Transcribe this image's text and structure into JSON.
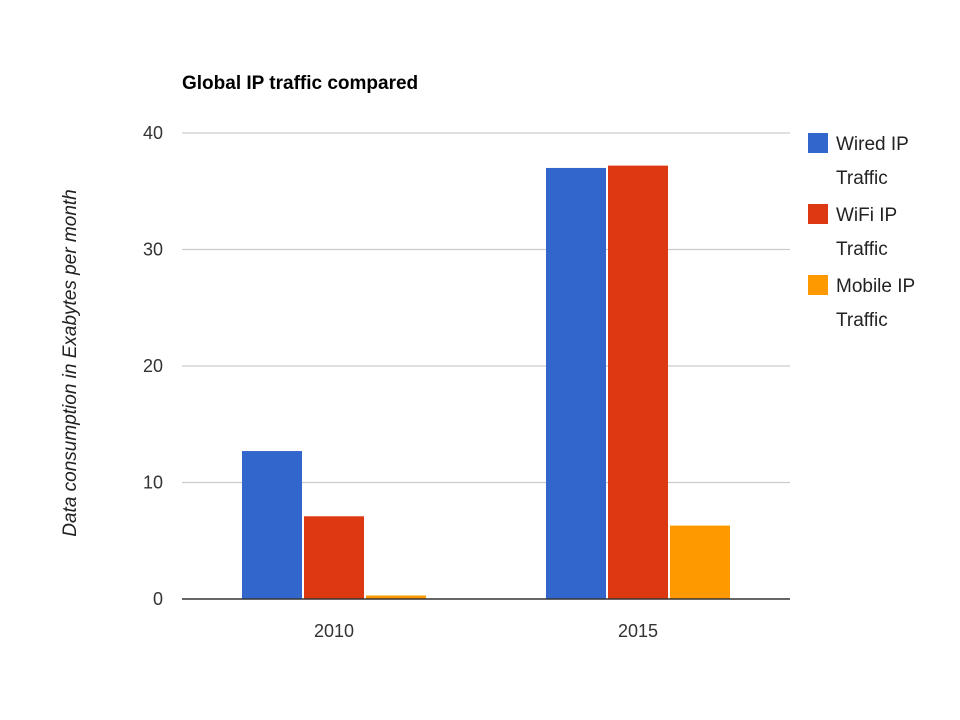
{
  "chart_data": {
    "type": "bar",
    "title": "Global IP traffic compared",
    "xlabel": "",
    "ylabel": "Data consumption in Exabytes per month",
    "categories": [
      "2010",
      "2015"
    ],
    "ylim": [
      0,
      40
    ],
    "yticks": [
      "0",
      "10",
      "20",
      "30",
      "40"
    ],
    "grid": true,
    "legend_position": "right",
    "series": [
      {
        "name": "Wired IP Traffic",
        "name_lines": [
          "Wired IP",
          "Traffic"
        ],
        "color": "#3366cc",
        "values": [
          12.7,
          37.0
        ]
      },
      {
        "name": "WiFi IP Traffic",
        "name_lines": [
          "WiFi IP",
          "Traffic"
        ],
        "color": "#dc3912",
        "values": [
          7.1,
          37.2
        ]
      },
      {
        "name": "Mobile IP Traffic",
        "name_lines": [
          "Mobile IP",
          "Traffic"
        ],
        "color": "#ff9900",
        "values": [
          0.3,
          6.3
        ]
      }
    ]
  }
}
